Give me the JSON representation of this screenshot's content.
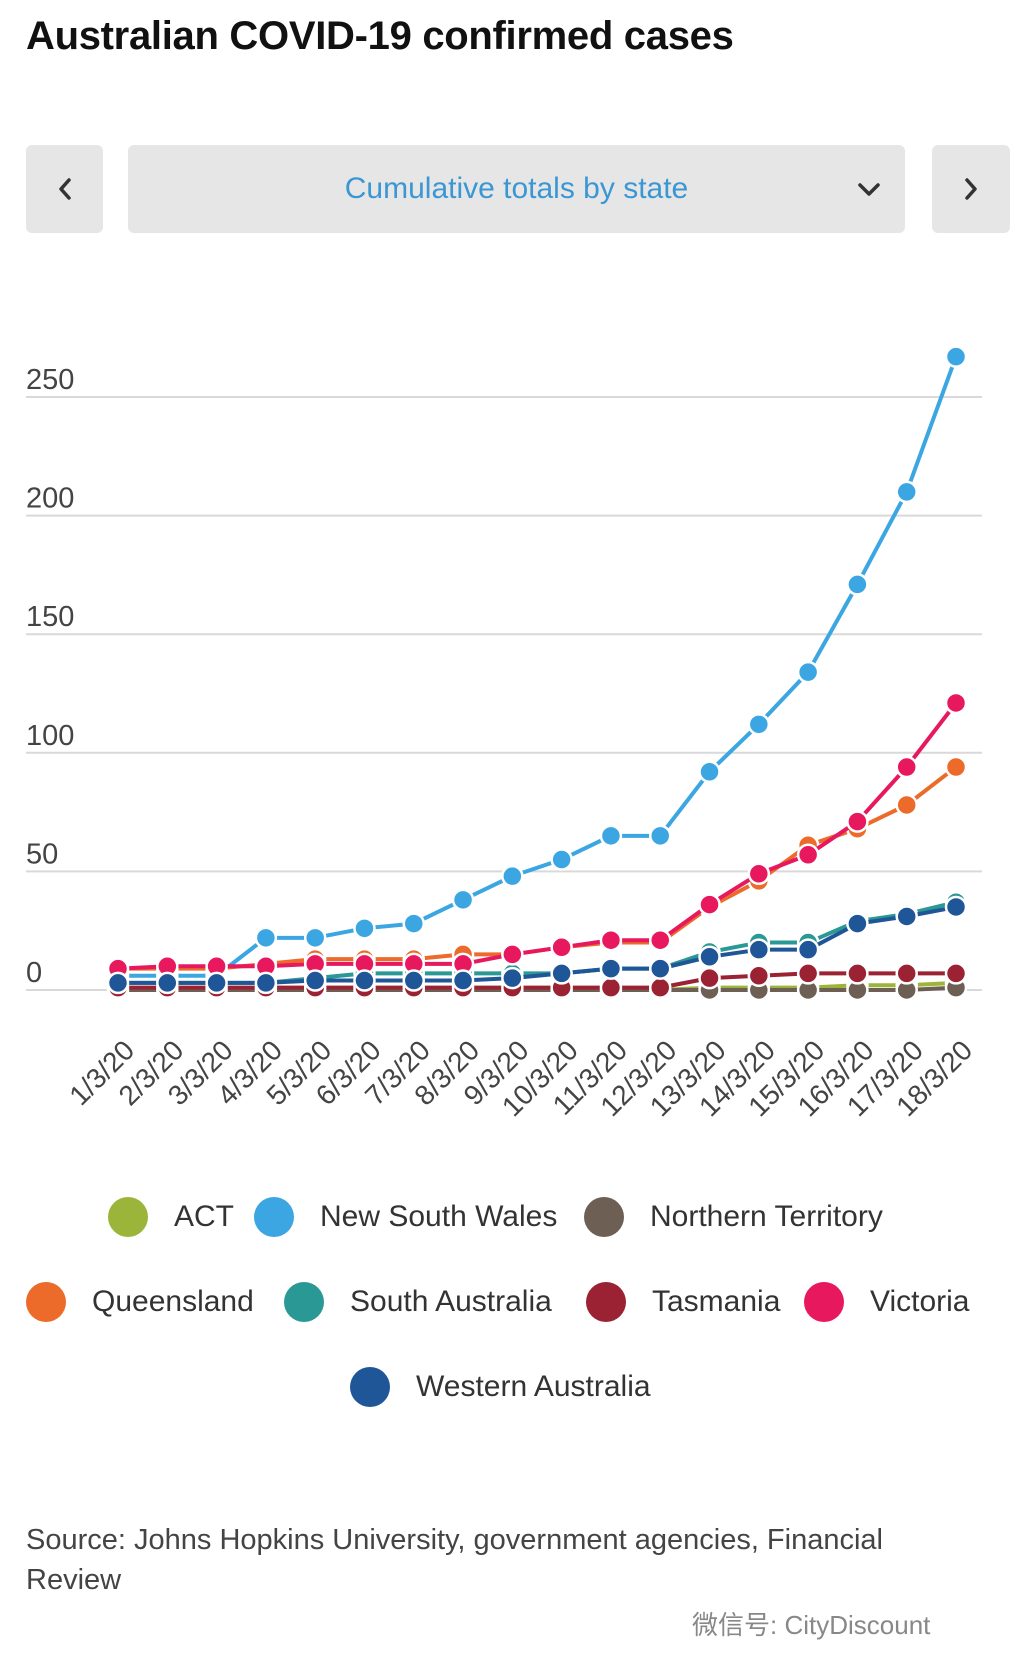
{
  "title": "Australian COVID-19 confirmed cases",
  "nav": {
    "prev_icon": "chevron-left-icon",
    "next_icon": "chevron-right-icon"
  },
  "selector": {
    "label": "Cumulative totals by state",
    "icon": "chevron-down-icon"
  },
  "chart_data": {
    "type": "line",
    "categories": [
      "1/3/20",
      "2/3/20",
      "3/3/20",
      "4/3/20",
      "5/3/20",
      "6/3/20",
      "7/3/20",
      "8/3/20",
      "9/3/20",
      "10/3/20",
      "11/3/20",
      "12/3/20",
      "13/3/20",
      "14/3/20",
      "15/3/20",
      "16/3/20",
      "17/3/20",
      "18/3/20"
    ],
    "yticks": [
      0,
      50,
      100,
      150,
      200,
      250
    ],
    "ylim": [
      0,
      270
    ],
    "grid": true,
    "legend_position": "bottom",
    "series": [
      {
        "name": "ACT",
        "color": "#9bb53a",
        "values": [
          0,
          0,
          0,
          0,
          0,
          0,
          0,
          0,
          0,
          0,
          0,
          0,
          1,
          1,
          1,
          2,
          2,
          3
        ]
      },
      {
        "name": "New South Wales",
        "color": "#3ca6e3",
        "values": [
          6,
          6,
          6,
          22,
          22,
          26,
          28,
          38,
          48,
          55,
          65,
          65,
          92,
          112,
          134,
          171,
          210,
          267
        ]
      },
      {
        "name": "Northern Territory",
        "color": "#6e5f55",
        "values": [
          0,
          0,
          0,
          0,
          0,
          0,
          0,
          0,
          0,
          0,
          0,
          0,
          0,
          0,
          0,
          0,
          0,
          1
        ]
      },
      {
        "name": "Queensland",
        "color": "#ec6a2a",
        "values": [
          9,
          9,
          9,
          11,
          13,
          13,
          13,
          15,
          15,
          18,
          20,
          20,
          35,
          46,
          61,
          68,
          78,
          94
        ]
      },
      {
        "name": "South Australia",
        "color": "#2a9894",
        "values": [
          3,
          3,
          3,
          3,
          5,
          7,
          7,
          7,
          7,
          7,
          9,
          9,
          16,
          20,
          20,
          29,
          32,
          37
        ]
      },
      {
        "name": "Tasmania",
        "color": "#9a2232",
        "values": [
          1,
          1,
          1,
          1,
          1,
          1,
          1,
          1,
          1,
          1,
          1,
          1,
          5,
          6,
          7,
          7,
          7,
          7
        ]
      },
      {
        "name": "Victoria",
        "color": "#e8185e",
        "values": [
          9,
          10,
          10,
          10,
          11,
          11,
          11,
          11,
          15,
          18,
          21,
          21,
          36,
          49,
          57,
          71,
          94,
          121
        ]
      },
      {
        "name": "Western Australia",
        "color": "#1f5698",
        "values": [
          3,
          3,
          3,
          3,
          4,
          4,
          4,
          4,
          5,
          7,
          9,
          9,
          14,
          17,
          17,
          28,
          31,
          35
        ]
      }
    ]
  },
  "legend": {
    "items": [
      {
        "label": "ACT",
        "color": "#9bb53a"
      },
      {
        "label": "New South Wales",
        "color": "#3ca6e3"
      },
      {
        "label": "Northern Territory",
        "color": "#6e5f55"
      },
      {
        "label": "Queensland",
        "color": "#ec6a2a"
      },
      {
        "label": "South Australia",
        "color": "#2a9894"
      },
      {
        "label": "Tasmania",
        "color": "#9a2232"
      },
      {
        "label": "Victoria",
        "color": "#e8185e"
      },
      {
        "label": "Western Australia",
        "color": "#1f5698"
      }
    ]
  },
  "source": "Source: Johns Hopkins University, government agencies, Financial Review",
  "watermark": "微信号: CityDiscount"
}
